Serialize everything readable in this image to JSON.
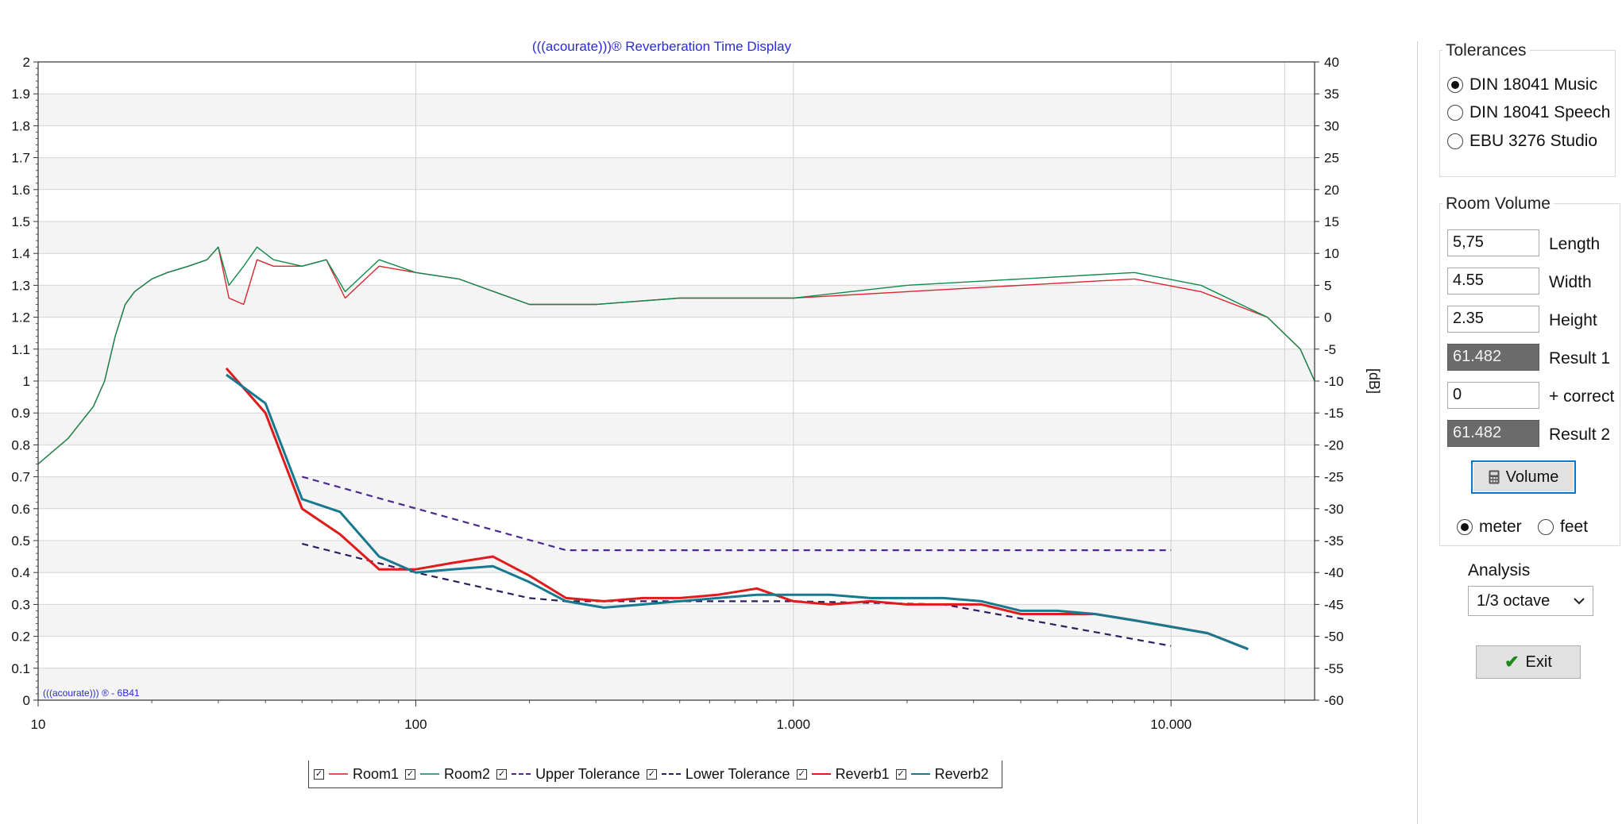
{
  "chart_data": {
    "type": "line",
    "title": "(((acourate)))® Reverberation Time Display",
    "watermark": "(((acourate))) ® - 6B41",
    "x_scale": "log",
    "x_range": [
      10,
      24000
    ],
    "x_ticks": [
      {
        "value": 10,
        "label": "10"
      },
      {
        "value": 100,
        "label": "100"
      },
      {
        "value": 1000,
        "label": "1.000"
      },
      {
        "value": 10000,
        "label": "10.000"
      }
    ],
    "y_left": {
      "range": [
        0,
        2
      ],
      "ticks": [
        "0",
        "0.1",
        "0.2",
        "0.3",
        "0.4",
        "0.5",
        "0.6",
        "0.7",
        "0.8",
        "0.9",
        "1",
        "1.1",
        "1.2",
        "1.3",
        "1.4",
        "1.5",
        "1.6",
        "1.7",
        "1.8",
        "1.9",
        "2"
      ]
    },
    "y_right": {
      "range": [
        -60,
        40
      ],
      "label": "[dB]",
      "ticks": [
        "-60",
        "-55",
        "-50",
        "-45",
        "-40",
        "-35",
        "-30",
        "-25",
        "-20",
        "-15",
        "-10",
        "-5",
        "0",
        "5",
        "10",
        "15",
        "20",
        "25",
        "30",
        "35",
        "40"
      ]
    },
    "grid": true,
    "legend_position": "bottom",
    "legend": [
      {
        "label": "Room1",
        "color": "#e8505a",
        "style": "solid",
        "checked": true
      },
      {
        "label": "Room2",
        "color": "#3aa38c",
        "style": "solid",
        "checked": true
      },
      {
        "label": "Upper Tolerance",
        "color": "#4b2a8c",
        "style": "dashed",
        "checked": true
      },
      {
        "label": "Lower Tolerance",
        "color": "#2d1f5e",
        "style": "dashed",
        "checked": true
      },
      {
        "label": "Reverb1",
        "color": "#e01b1b",
        "style": "solid",
        "checked": true
      },
      {
        "label": "Reverb2",
        "color": "#17798f",
        "style": "solid",
        "checked": true
      }
    ],
    "series": [
      {
        "name": "Room1",
        "axis": "right_dB",
        "color": "#d9252e",
        "x": [
          10,
          12,
          14,
          15,
          16,
          17,
          18,
          20,
          22,
          25,
          28,
          30,
          32,
          35,
          38,
          42,
          50,
          58,
          65,
          80,
          100,
          130,
          200,
          300,
          500,
          1000,
          2000,
          4000,
          8000,
          12000,
          18000,
          22000,
          24000
        ],
        "y": [
          -23,
          -19,
          -14,
          -10,
          -3,
          2,
          4,
          6,
          7,
          8,
          9,
          11,
          3,
          2,
          9,
          8,
          8,
          9,
          3,
          8,
          7,
          6,
          2,
          2,
          3,
          3,
          4,
          5,
          6,
          4,
          0,
          -5,
          -10
        ]
      },
      {
        "name": "Room2",
        "axis": "right_dB",
        "color": "#0f8a4a",
        "x": [
          10,
          12,
          14,
          15,
          16,
          17,
          18,
          20,
          22,
          25,
          28,
          30,
          32,
          35,
          38,
          42,
          50,
          58,
          65,
          80,
          100,
          130,
          200,
          300,
          500,
          1000,
          2000,
          4000,
          8000,
          12000,
          18000,
          22000,
          24000
        ],
        "y": [
          -23,
          -19,
          -14,
          -10,
          -3,
          2,
          4,
          6,
          7,
          8,
          9,
          11,
          5,
          8,
          11,
          9,
          8,
          9,
          4,
          9,
          7,
          6,
          2,
          2,
          3,
          3,
          5,
          6,
          7,
          5,
          0,
          -5,
          -10
        ]
      },
      {
        "name": "Upper Tolerance",
        "axis": "left",
        "color": "#4b2a8c",
        "x": [
          50,
          250,
          10000
        ],
        "y": [
          0.7,
          0.47,
          0.47
        ]
      },
      {
        "name": "Lower Tolerance",
        "axis": "left",
        "color": "#2d1f5e",
        "x": [
          50,
          100,
          200,
          250,
          1000,
          2500,
          10000
        ],
        "y": [
          0.49,
          0.4,
          0.32,
          0.31,
          0.31,
          0.3,
          0.17
        ]
      },
      {
        "name": "Reverb1",
        "axis": "left",
        "color": "#e01b1b",
        "x": [
          31.5,
          40,
          50,
          63,
          80,
          100,
          125,
          160,
          200,
          250,
          315,
          400,
          500,
          630,
          800,
          1000,
          1250,
          1600,
          2000,
          2500,
          3150,
          4000,
          5000,
          6300,
          8000,
          10000,
          12500,
          16000
        ],
        "y": [
          1.04,
          0.9,
          0.6,
          0.52,
          0.41,
          0.41,
          0.43,
          0.45,
          0.39,
          0.32,
          0.31,
          0.32,
          0.32,
          0.33,
          0.35,
          0.31,
          0.3,
          0.31,
          0.3,
          0.3,
          0.3,
          0.27,
          0.27,
          0.27,
          0.25,
          0.23,
          0.21,
          0.16
        ]
      },
      {
        "name": "Reverb2",
        "axis": "left",
        "color": "#17798f",
        "x": [
          31.5,
          40,
          50,
          63,
          80,
          100,
          125,
          160,
          200,
          250,
          315,
          400,
          500,
          630,
          800,
          1000,
          1250,
          1600,
          2000,
          2500,
          3150,
          4000,
          5000,
          6300,
          8000,
          10000,
          12500,
          16000
        ],
        "y": [
          1.02,
          0.93,
          0.63,
          0.59,
          0.45,
          0.4,
          0.41,
          0.42,
          0.37,
          0.31,
          0.29,
          0.3,
          0.31,
          0.32,
          0.33,
          0.33,
          0.33,
          0.32,
          0.32,
          0.32,
          0.31,
          0.28,
          0.28,
          0.27,
          0.25,
          0.23,
          0.21,
          0.16
        ]
      }
    ]
  },
  "panel": {
    "tolerances": {
      "title": "Tolerances",
      "options": [
        {
          "label": "DIN 18041 Music",
          "selected": true
        },
        {
          "label": "DIN 18041 Speech",
          "selected": false
        },
        {
          "label": "EBU 3276 Studio",
          "selected": false
        }
      ]
    },
    "room_volume": {
      "title": "Room Volume",
      "fields": [
        {
          "value": "5,75",
          "label": "Length",
          "readonly": false
        },
        {
          "value": "4.55",
          "label": "Width",
          "readonly": false
        },
        {
          "value": "2.35",
          "label": "Height",
          "readonly": false
        },
        {
          "value": "61.482",
          "label": "Result 1",
          "readonly": true
        },
        {
          "value": "0",
          "label": "+ correct",
          "readonly": false
        },
        {
          "value": "61.482",
          "label": "Result 2",
          "readonly": true
        }
      ],
      "volume_button": "Volume",
      "units": [
        {
          "label": "meter",
          "selected": true
        },
        {
          "label": "feet",
          "selected": false
        }
      ]
    },
    "analysis": {
      "label": "Analysis",
      "value": "1/3 octave"
    },
    "exit_button": "Exit",
    "colors": {
      "exit_check": "#1a8a1a",
      "focus": "#0078d7"
    }
  }
}
